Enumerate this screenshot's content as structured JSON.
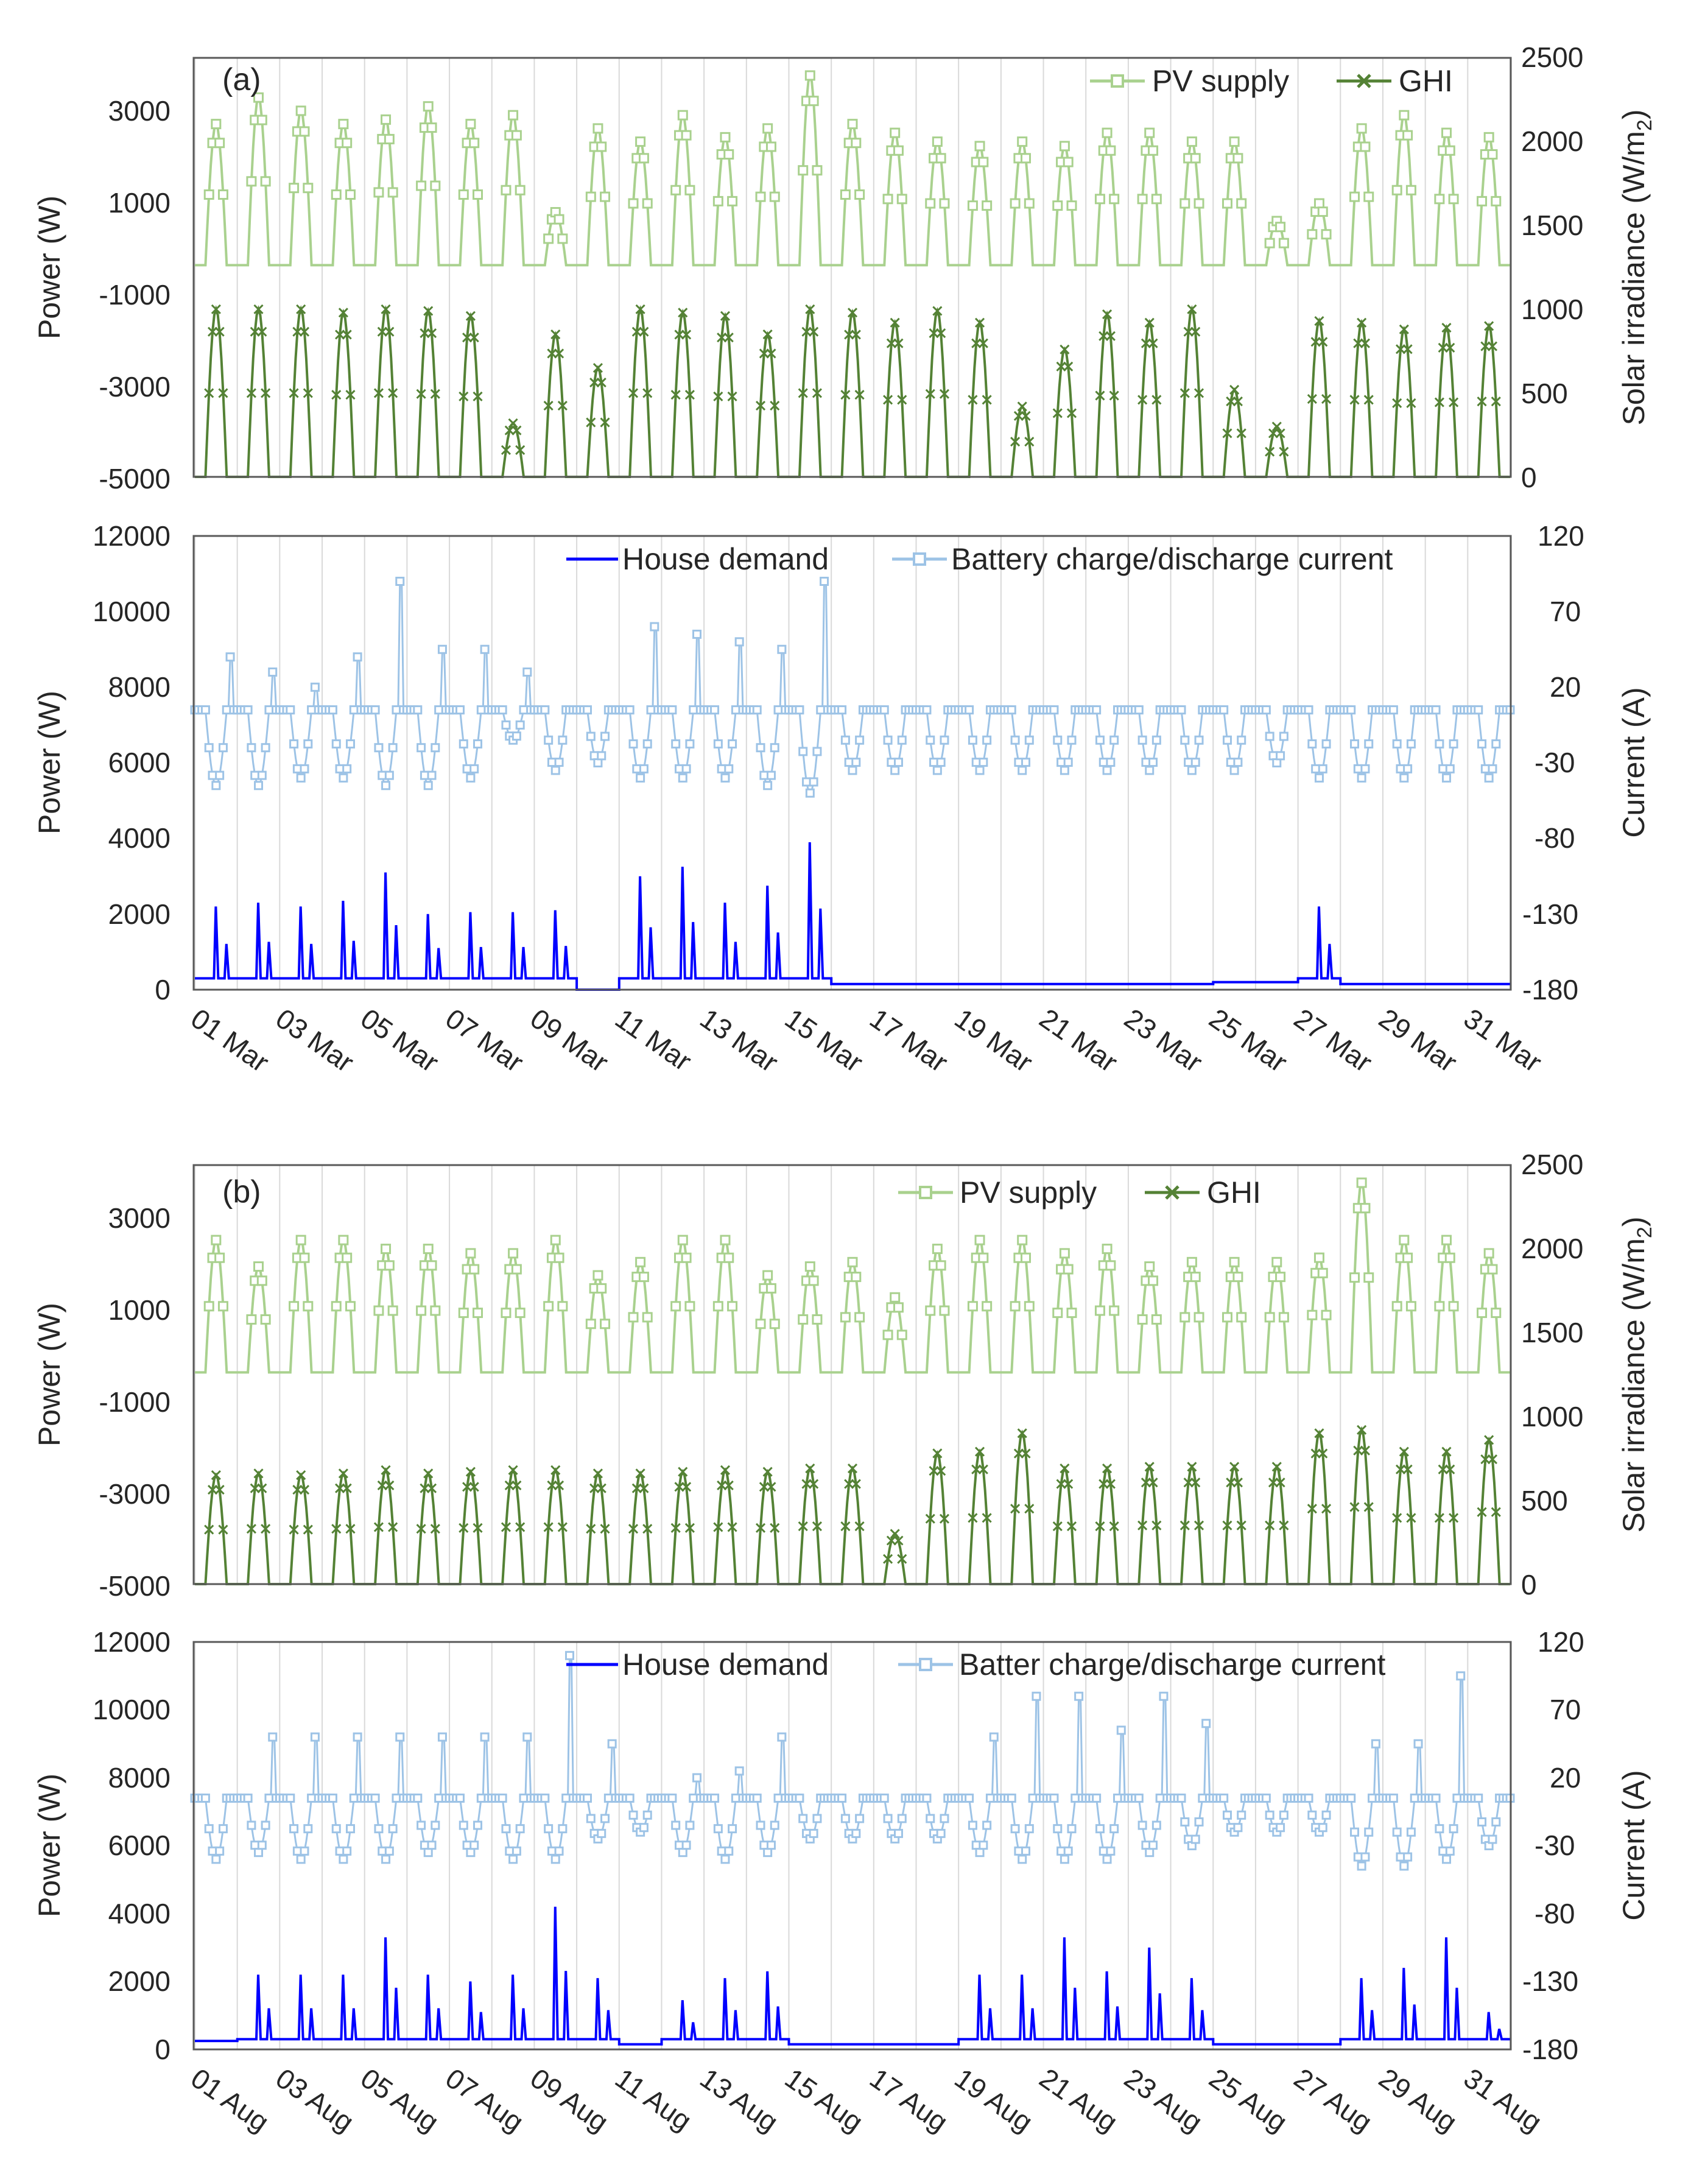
{
  "chart_data": [
    {
      "id": "a-top",
      "type": "line",
      "panel_label": "(a)",
      "month": "Mar",
      "ylabel_left": "Power (W)",
      "ylabel_right": "Solar irradiance (W/m",
      "ylabel_right_sub": "2",
      "ylabel_right_close": ")",
      "ylim_left": [
        -5000,
        4500
      ],
      "ylim_right": [
        0,
        2500
      ],
      "yticks_left": [
        "3000",
        "1000",
        "-1000",
        "-3000",
        "-5000"
      ],
      "yticks_right": [
        "2500",
        "2000",
        "1500",
        "1000",
        "500",
        "0"
      ],
      "series": [
        {
          "name": "PV supply",
          "axis": "left",
          "color": "#a9d18e",
          "marker": "square",
          "daily_peak_w": [
            3000,
            3600,
            3300,
            3000,
            3100,
            3400,
            3000,
            3200,
            1000,
            2900,
            2600,
            3200,
            2700,
            2900,
            4100,
            3000,
            2800,
            2600,
            2500,
            2600,
            2500,
            2800,
            2800,
            2600,
            2600,
            800,
            1200,
            2900,
            3200,
            2800,
            2700
          ]
        },
        {
          "name": "GHI",
          "axis": "right",
          "color": "#548235",
          "marker": "x",
          "daily_peak": [
            1000,
            1000,
            1000,
            980,
            1000,
            990,
            960,
            320,
            850,
            650,
            1000,
            980,
            960,
            850,
            1000,
            980,
            920,
            990,
            920,
            420,
            760,
            970,
            920,
            1000,
            520,
            300,
            930,
            920,
            880,
            890,
            900
          ]
        }
      ]
    },
    {
      "id": "a-bottom",
      "type": "line",
      "month": "Mar",
      "ylabel_left": "Power (W)",
      "ylabel_right": "Current (A)",
      "ylim_left": [
        0,
        12000
      ],
      "ylim_right": [
        -180,
        120
      ],
      "yticks_left": [
        "12000",
        "10000",
        "8000",
        "6000",
        "4000",
        "2000",
        "0"
      ],
      "yticks_right": [
        "120",
        "70",
        "20",
        "-30",
        "-80",
        "-130",
        "-180"
      ],
      "series": [
        {
          "name": "House demand",
          "axis": "left",
          "color": "#0000ff",
          "marker": "none",
          "daily_peak_w": [
            2200,
            2300,
            2200,
            2350,
            3100,
            2000,
            2050,
            2050,
            2100,
            0,
            3000,
            3250,
            2300,
            2750,
            3900,
            150,
            150,
            150,
            150,
            150,
            150,
            150,
            150,
            150,
            200,
            200,
            2200,
            150,
            150,
            150,
            150
          ]
        },
        {
          "name": "Battery charge/discharge current",
          "axis": "right",
          "color": "#9dc3e6",
          "marker": "square",
          "daily_max_a": [
            40,
            30,
            20,
            40,
            90,
            45,
            45,
            30,
            15,
            10,
            60,
            55,
            50,
            45,
            90,
            12,
            12,
            12,
            12,
            12,
            12,
            12,
            12,
            12,
            12,
            12,
            15,
            12,
            12,
            12,
            12
          ],
          "daily_min_a": [
            -45,
            -45,
            -40,
            -40,
            -45,
            -45,
            -40,
            -15,
            -35,
            -30,
            -40,
            -40,
            -40,
            -45,
            -50,
            -35,
            -35,
            -35,
            -35,
            -35,
            -35,
            -35,
            -35,
            -35,
            -35,
            -30,
            -40,
            -40,
            -40,
            -40,
            -40
          ]
        }
      ]
    },
    {
      "id": "b-top",
      "type": "line",
      "panel_label": "(b)",
      "month": "Aug",
      "ylabel_left": "Power (W)",
      "ylabel_right": "Solar irradiance (W/m",
      "ylabel_right_sub": "2",
      "ylabel_right_close": ")",
      "ylim_left": [
        -5000,
        4500
      ],
      "ylim_right": [
        0,
        2500
      ],
      "yticks_left": [
        "3000",
        "1000",
        "-1000",
        "-3000",
        "-5000"
      ],
      "yticks_right": [
        "2500",
        "2000",
        "1500",
        "1000",
        "500",
        "0"
      ],
      "series": [
        {
          "name": "PV supply",
          "axis": "left",
          "color": "#a9d18e",
          "marker": "square",
          "daily_peak_w": [
            2800,
            2200,
            2800,
            2800,
            2600,
            2600,
            2500,
            2500,
            2800,
            2000,
            2300,
            2800,
            2800,
            2000,
            2200,
            2300,
            1500,
            2600,
            2800,
            2800,
            2500,
            2600,
            2200,
            2300,
            2300,
            2300,
            2400,
            4100,
            2800,
            2800,
            2500
          ]
        },
        {
          "name": "GHI",
          "axis": "right",
          "color": "#548235",
          "marker": "x",
          "daily_peak": [
            650,
            660,
            650,
            660,
            680,
            660,
            670,
            680,
            680,
            660,
            660,
            670,
            680,
            670,
            690,
            690,
            300,
            780,
            790,
            900,
            690,
            690,
            700,
            700,
            700,
            700,
            900,
            920,
            790,
            790,
            860
          ]
        }
      ]
    },
    {
      "id": "b-bottom",
      "type": "line",
      "month": "Aug",
      "ylabel_left": "Power (W)",
      "ylabel_right": "Current (A)",
      "ylim_left": [
        0,
        12000
      ],
      "ylim_right": [
        -180,
        120
      ],
      "yticks_left": [
        "12000",
        "10000",
        "8000",
        "6000",
        "4000",
        "2000",
        "0"
      ],
      "yticks_right": [
        "120",
        "70",
        "20",
        "-30",
        "-80",
        "-130",
        "-180"
      ],
      "series": [
        {
          "name": "House demand",
          "axis": "left",
          "color": "#0000ff",
          "marker": "none",
          "daily_peak_w": [
            250,
            2200,
            2200,
            2200,
            3300,
            2200,
            2000,
            2200,
            4200,
            2100,
            150,
            1450,
            2100,
            2300,
            150,
            150,
            150,
            150,
            2200,
            2200,
            3300,
            2300,
            3000,
            2100,
            150,
            150,
            150,
            2100,
            2400,
            3300,
            1100
          ]
        },
        {
          "name": "Batter charge/discharge current",
          "axis": "right",
          "color": "#9dc3e6",
          "marker": "square",
          "daily_max_a": [
            12,
            50,
            50,
            50,
            50,
            50,
            50,
            50,
            110,
            45,
            15,
            20,
            25,
            50,
            12,
            12,
            12,
            12,
            50,
            80,
            80,
            55,
            80,
            60,
            12,
            12,
            12,
            45,
            45,
            95,
            15
          ],
          "daily_min_a": [
            -40,
            -35,
            -40,
            -40,
            -40,
            -35,
            -35,
            -40,
            -40,
            -25,
            -20,
            -35,
            -40,
            -35,
            -25,
            -25,
            -25,
            -25,
            -35,
            -40,
            -40,
            -40,
            -35,
            -30,
            -20,
            -20,
            -20,
            -45,
            -45,
            -40,
            -30
          ]
        }
      ]
    }
  ],
  "x_axis": {
    "panel_a_dates": [
      "01 Mar",
      "03 Mar",
      "05 Mar",
      "07 Mar",
      "09 Mar",
      "11 Mar",
      "13 Mar",
      "15 Mar",
      "17 Mar",
      "19 Mar",
      "21 Mar",
      "23 Mar",
      "25 Mar",
      "27 Mar",
      "29 Mar",
      "31 Mar"
    ],
    "panel_b_dates": [
      "01 Aug",
      "03 Aug",
      "05 Aug",
      "07 Aug",
      "09 Aug",
      "11 Aug",
      "13 Aug",
      "15 Aug",
      "17 Aug",
      "19 Aug",
      "21 Aug",
      "23 Aug",
      "25 Aug",
      "27 Aug",
      "29 Aug",
      "31 Aug"
    ]
  }
}
